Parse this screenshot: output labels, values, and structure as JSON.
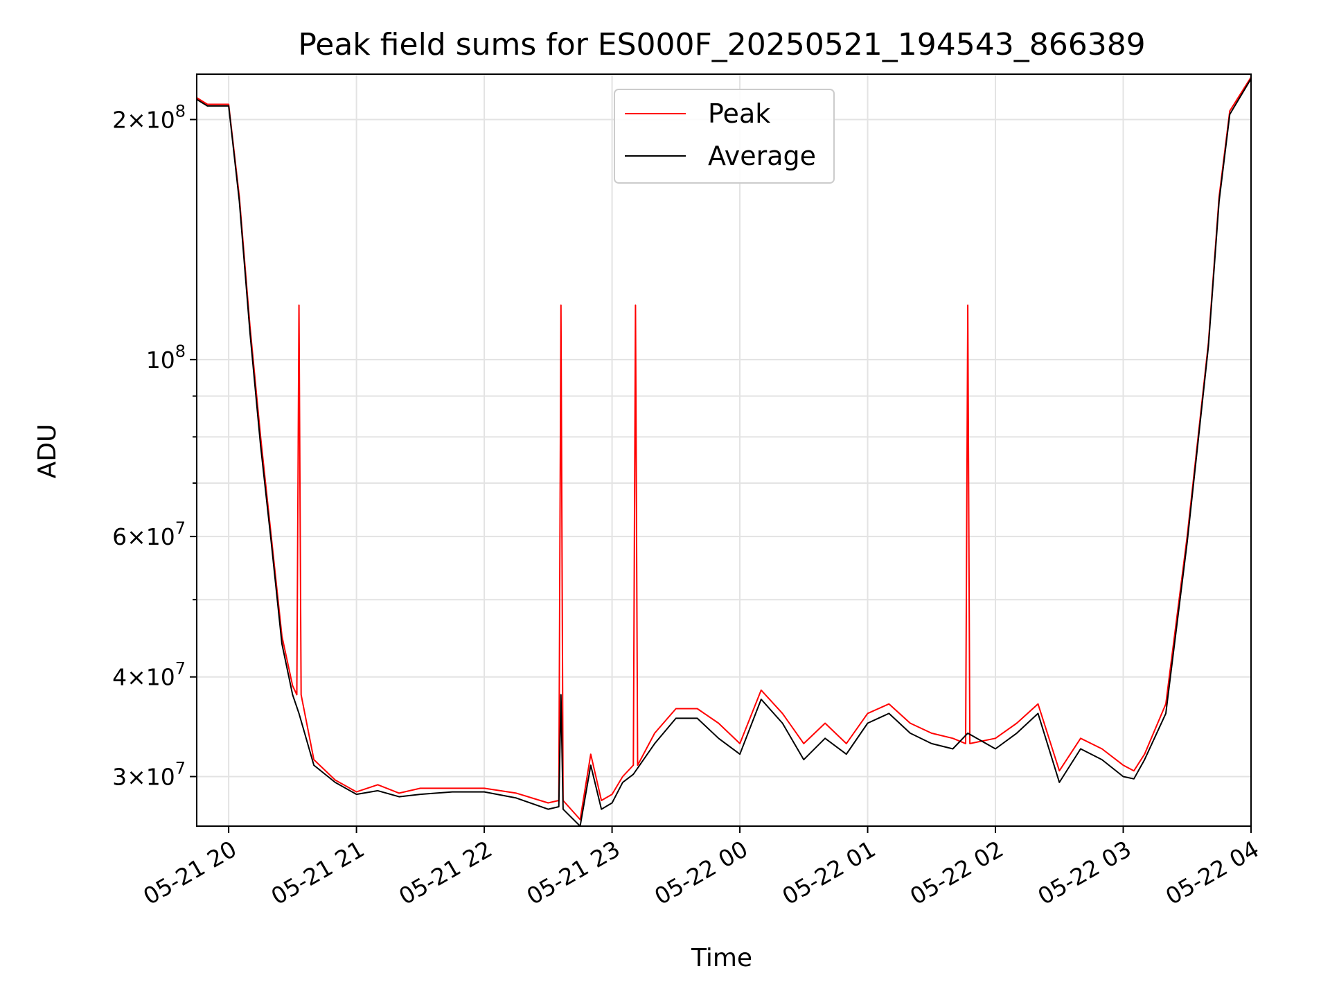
{
  "chart_data": {
    "type": "line",
    "title": "Peak field sums for ES000F_20250521_194543_866389",
    "xlabel": "Time",
    "ylabel": "ADU",
    "yscale": "log",
    "xlim": [
      "2025-05-21 19:45",
      "2025-05-22 04:00"
    ],
    "ylim": [
      26000000,
      228000000
    ],
    "grid": true,
    "legend_position": "upper center",
    "x_ticks": [
      "05-21 20",
      "05-21 21",
      "05-21 22",
      "05-21 23",
      "05-22 00",
      "05-22 01",
      "05-22 02",
      "05-22 03",
      "05-22 04"
    ],
    "y_ticks": [
      {
        "value": 200000000,
        "mant": "2",
        "exp": "8"
      },
      {
        "value": 100000000,
        "mant": "",
        "exp": "8"
      },
      {
        "value": 60000000,
        "mant": "6",
        "exp": "7"
      },
      {
        "value": 40000000,
        "mant": "4",
        "exp": "7"
      },
      {
        "value": 30000000,
        "mant": "3",
        "exp": "7"
      }
    ],
    "series": [
      {
        "name": "Peak",
        "color": "#ff0000",
        "x": [
          "2025-05-21 19:45",
          "2025-05-21 19:50",
          "2025-05-21 20:00",
          "2025-05-21 20:05",
          "2025-05-21 20:10",
          "2025-05-21 20:15",
          "2025-05-21 20:20",
          "2025-05-21 20:25",
          "2025-05-21 20:30",
          "2025-05-21 20:32",
          "2025-05-21 20:33",
          "2025-05-21 20:34",
          "2025-05-21 20:40",
          "2025-05-21 20:50",
          "2025-05-21 21:00",
          "2025-05-21 21:10",
          "2025-05-21 21:20",
          "2025-05-21 21:30",
          "2025-05-21 21:45",
          "2025-05-21 22:00",
          "2025-05-21 22:15",
          "2025-05-21 22:30",
          "2025-05-21 22:35",
          "2025-05-21 22:36",
          "2025-05-21 22:37",
          "2025-05-21 22:45",
          "2025-05-21 22:50",
          "2025-05-21 22:55",
          "2025-05-21 23:00",
          "2025-05-21 23:05",
          "2025-05-21 23:10",
          "2025-05-21 23:11",
          "2025-05-21 23:12",
          "2025-05-21 23:20",
          "2025-05-21 23:30",
          "2025-05-21 23:40",
          "2025-05-21 23:50",
          "2025-05-22 00:00",
          "2025-05-22 00:10",
          "2025-05-22 00:20",
          "2025-05-22 00:30",
          "2025-05-22 00:40",
          "2025-05-22 00:50",
          "2025-05-22 01:00",
          "2025-05-22 01:10",
          "2025-05-22 01:20",
          "2025-05-22 01:30",
          "2025-05-22 01:40",
          "2025-05-22 01:46",
          "2025-05-22 01:47",
          "2025-05-22 01:48",
          "2025-05-22 02:00",
          "2025-05-22 02:10",
          "2025-05-22 02:20",
          "2025-05-22 02:30",
          "2025-05-22 02:40",
          "2025-05-22 02:50",
          "2025-05-22 03:00",
          "2025-05-22 03:05",
          "2025-05-22 03:10",
          "2025-05-22 03:20",
          "2025-05-22 03:30",
          "2025-05-22 03:40",
          "2025-05-22 03:45",
          "2025-05-22 03:50",
          "2025-05-22 04:00"
        ],
        "y": [
          213000000,
          209000000,
          209000000,
          160000000,
          110000000,
          80000000,
          60000000,
          45000000,
          39000000,
          38000000,
          117000000,
          38000000,
          31500000,
          29700000,
          28700000,
          29300000,
          28600000,
          29000000,
          29000000,
          29000000,
          28600000,
          27800000,
          28000000,
          117000000,
          28000000,
          26500000,
          32000000,
          28000000,
          28500000,
          30000000,
          31000000,
          117000000,
          31000000,
          34000000,
          36500000,
          36500000,
          35000000,
          33000000,
          38500000,
          36000000,
          33000000,
          35000000,
          33000000,
          36000000,
          37000000,
          35000000,
          34000000,
          33500000,
          33000000,
          117000000,
          33000000,
          33500000,
          35000000,
          37000000,
          30500000,
          33500000,
          32500000,
          31000000,
          30500000,
          32000000,
          37000000,
          60000000,
          105000000,
          160000000,
          205000000,
          226000000
        ]
      },
      {
        "name": "Average",
        "color": "#000000",
        "x": [
          "2025-05-21 19:45",
          "2025-05-21 19:50",
          "2025-05-21 20:00",
          "2025-05-21 20:05",
          "2025-05-21 20:10",
          "2025-05-21 20:15",
          "2025-05-21 20:20",
          "2025-05-21 20:25",
          "2025-05-21 20:30",
          "2025-05-21 20:33",
          "2025-05-21 20:40",
          "2025-05-21 20:50",
          "2025-05-21 21:00",
          "2025-05-21 21:10",
          "2025-05-21 21:20",
          "2025-05-21 21:30",
          "2025-05-21 21:45",
          "2025-05-21 22:00",
          "2025-05-21 22:15",
          "2025-05-21 22:30",
          "2025-05-21 22:35",
          "2025-05-21 22:36",
          "2025-05-21 22:37",
          "2025-05-21 22:45",
          "2025-05-21 22:50",
          "2025-05-21 22:55",
          "2025-05-21 23:00",
          "2025-05-21 23:05",
          "2025-05-21 23:10",
          "2025-05-21 23:20",
          "2025-05-21 23:30",
          "2025-05-21 23:40",
          "2025-05-21 23:50",
          "2025-05-22 00:00",
          "2025-05-22 00:10",
          "2025-05-22 00:20",
          "2025-05-22 00:30",
          "2025-05-22 00:40",
          "2025-05-22 00:50",
          "2025-05-22 01:00",
          "2025-05-22 01:10",
          "2025-05-22 01:20",
          "2025-05-22 01:30",
          "2025-05-22 01:40",
          "2025-05-22 01:47",
          "2025-05-22 02:00",
          "2025-05-22 02:10",
          "2025-05-22 02:20",
          "2025-05-22 02:30",
          "2025-05-22 02:40",
          "2025-05-22 02:50",
          "2025-05-22 03:00",
          "2025-05-22 03:05",
          "2025-05-22 03:10",
          "2025-05-22 03:20",
          "2025-05-22 03:30",
          "2025-05-22 03:40",
          "2025-05-22 03:45",
          "2025-05-22 03:50",
          "2025-05-22 04:00"
        ],
        "y": [
          212000000,
          208000000,
          208000000,
          158000000,
          108000000,
          78000000,
          59000000,
          44000000,
          38000000,
          36000000,
          31000000,
          29500000,
          28500000,
          28800000,
          28300000,
          28500000,
          28700000,
          28700000,
          28200000,
          27300000,
          27500000,
          38000000,
          27300000,
          26000000,
          31000000,
          27300000,
          27800000,
          29500000,
          30200000,
          33000000,
          35500000,
          35500000,
          33500000,
          32000000,
          37500000,
          35000000,
          31500000,
          33500000,
          32000000,
          35000000,
          36000000,
          34000000,
          33000000,
          32500000,
          34000000,
          32500000,
          34000000,
          36000000,
          29500000,
          32500000,
          31500000,
          30000000,
          29800000,
          31500000,
          36000000,
          59000000,
          104000000,
          158000000,
          203000000,
          225000000
        ]
      }
    ]
  }
}
